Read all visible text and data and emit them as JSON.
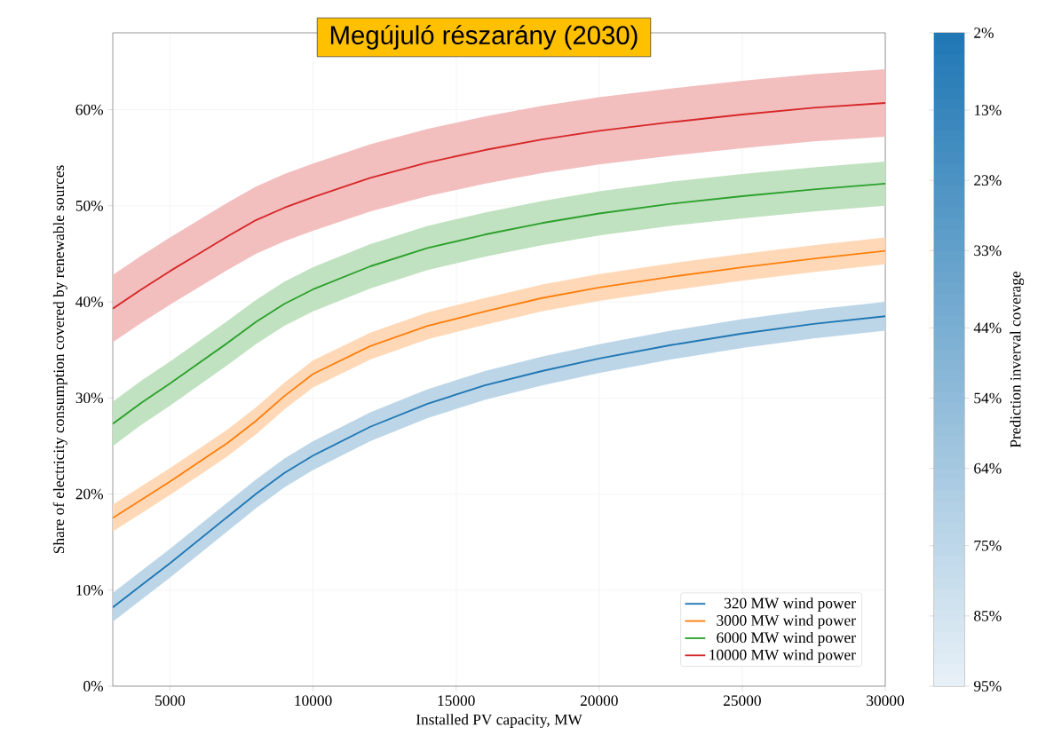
{
  "chart_data": {
    "type": "line",
    "title": "Megújuló részarány (2030)",
    "xlabel": "Installed PV capacity, MW",
    "ylabel": "Share of electricity consumption covered by renewable sources",
    "clabel": "Prediction inverval coverage",
    "x": [
      3000,
      4000,
      5000,
      6000,
      7000,
      8000,
      9000,
      10000,
      12000,
      14000,
      16000,
      18000,
      20000,
      22500,
      25000,
      27500,
      30000
    ],
    "series": [
      {
        "name": "320 MW wind power",
        "color": "#1f77b4",
        "values": [
          8.2,
          10.5,
          12.8,
          15.2,
          17.6,
          20.0,
          22.2,
          24.0,
          27.0,
          29.4,
          31.3,
          32.8,
          34.1,
          35.5,
          36.7,
          37.7,
          38.5
        ],
        "lower": [
          6.7,
          9.0,
          11.3,
          13.7,
          16.1,
          18.5,
          20.7,
          22.5,
          25.5,
          27.9,
          29.8,
          31.3,
          32.6,
          34.0,
          35.2,
          36.2,
          37.0
        ],
        "upper": [
          9.7,
          12.0,
          14.3,
          16.7,
          19.1,
          21.5,
          23.7,
          25.5,
          28.5,
          30.9,
          32.8,
          34.3,
          35.6,
          37.0,
          38.2,
          39.2,
          40.0
        ]
      },
      {
        "name": "3000 MW wind power",
        "color": "#ff7f0e",
        "values": [
          17.5,
          19.4,
          21.3,
          23.3,
          25.3,
          27.6,
          30.2,
          32.5,
          35.4,
          37.5,
          39.0,
          40.4,
          41.5,
          42.6,
          43.6,
          44.5,
          45.3
        ],
        "lower": [
          16.1,
          18.0,
          19.9,
          21.9,
          23.9,
          26.2,
          28.8,
          31.1,
          34.0,
          36.1,
          37.6,
          39.0,
          40.1,
          41.2,
          42.2,
          43.1,
          43.9
        ],
        "upper": [
          18.9,
          20.8,
          22.7,
          24.7,
          26.7,
          29.0,
          31.6,
          33.9,
          36.8,
          38.9,
          40.4,
          41.8,
          42.9,
          44.0,
          45.0,
          45.9,
          46.7
        ]
      },
      {
        "name": "6000 MW wind power",
        "color": "#2ca02c",
        "values": [
          27.3,
          29.5,
          31.5,
          33.6,
          35.7,
          37.9,
          39.8,
          41.3,
          43.7,
          45.6,
          47.0,
          48.2,
          49.2,
          50.2,
          51.0,
          51.7,
          52.3
        ],
        "lower": [
          25.0,
          27.2,
          29.2,
          31.3,
          33.4,
          35.6,
          37.5,
          39.0,
          41.4,
          43.3,
          44.7,
          45.9,
          46.9,
          47.9,
          48.7,
          49.4,
          50.0
        ],
        "upper": [
          29.6,
          31.8,
          33.8,
          35.9,
          38.0,
          40.2,
          42.1,
          43.6,
          46.0,
          47.9,
          49.3,
          50.5,
          51.5,
          52.5,
          53.3,
          54.0,
          54.6
        ]
      },
      {
        "name": "10000 MW wind power",
        "color": "#d62728",
        "values": [
          39.3,
          41.3,
          43.2,
          45.0,
          46.8,
          48.5,
          49.8,
          50.9,
          52.9,
          54.5,
          55.8,
          56.9,
          57.8,
          58.7,
          59.5,
          60.2,
          60.7
        ],
        "lower": [
          35.8,
          37.8,
          39.7,
          41.5,
          43.3,
          45.0,
          46.3,
          47.4,
          49.4,
          51.0,
          52.3,
          53.4,
          54.3,
          55.2,
          56.0,
          56.7,
          57.2
        ],
        "upper": [
          42.8,
          44.8,
          46.7,
          48.5,
          50.3,
          52.0,
          53.3,
          54.4,
          56.4,
          58.0,
          59.3,
          60.4,
          61.3,
          62.2,
          63.0,
          63.7,
          64.2
        ]
      }
    ],
    "xlim": [
      3000,
      30000
    ],
    "xticks": [
      5000,
      10000,
      15000,
      20000,
      25000,
      30000
    ],
    "ylim": [
      0,
      68
    ],
    "yticks": [
      {
        "value": 0,
        "label": "0%"
      },
      {
        "value": 10,
        "label": "10%"
      },
      {
        "value": 20,
        "label": "20%"
      },
      {
        "value": 30,
        "label": "30%"
      },
      {
        "value": 40,
        "label": "40%"
      },
      {
        "value": 50,
        "label": "50%"
      },
      {
        "value": 60,
        "label": "60%"
      }
    ],
    "clim": [
      95,
      2
    ],
    "cticks": [
      {
        "value": 2,
        "label": "2%"
      },
      {
        "value": 13,
        "label": "13%"
      },
      {
        "value": 23,
        "label": "23%"
      },
      {
        "value": 33,
        "label": "33%"
      },
      {
        "value": 44,
        "label": "44%"
      },
      {
        "value": 54,
        "label": "54%"
      },
      {
        "value": 64,
        "label": "64%"
      },
      {
        "value": 75,
        "label": "75%"
      },
      {
        "value": 85,
        "label": "85%"
      },
      {
        "value": 95,
        "label": "95%"
      }
    ],
    "grid": true,
    "legend": "bottom right"
  }
}
